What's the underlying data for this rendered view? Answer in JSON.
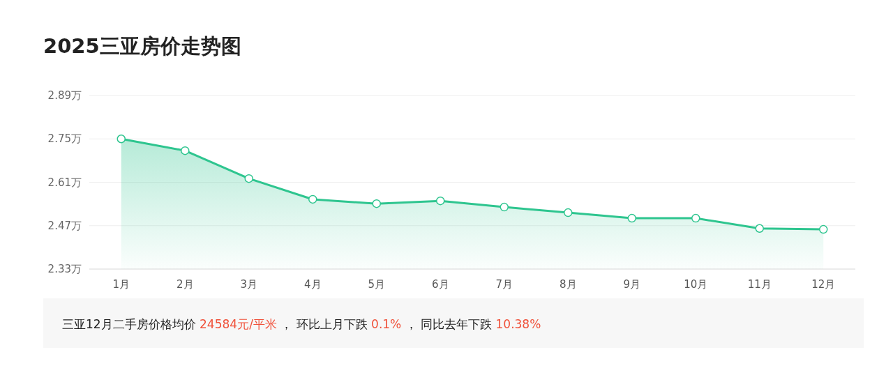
{
  "chart_data": {
    "type": "area",
    "title": "2025三亚房价走势图",
    "categories": [
      "1月",
      "2月",
      "3月",
      "4月",
      "5月",
      "6月",
      "7月",
      "8月",
      "9月",
      "10月",
      "11月",
      "12月"
    ],
    "series": [
      {
        "color": "#2ec58f",
        "values": [
          2.75,
          2.712,
          2.622,
          2.555,
          2.541,
          2.55,
          2.53,
          2.512,
          2.494,
          2.494,
          2.461,
          2.458
        ]
      }
    ],
    "ylim": [
      2.33,
      2.89
    ],
    "yticks": [
      {
        "value": 2.33,
        "label": "2.33万"
      },
      {
        "value": 2.47,
        "label": "2.47万"
      },
      {
        "value": 2.61,
        "label": "2.61万"
      },
      {
        "value": 2.75,
        "label": "2.75万"
      },
      {
        "value": 2.89,
        "label": "2.89万"
      }
    ],
    "grid": "y",
    "marker": "circle",
    "annotations": [
      "三亚12月二手房价格均价 ",
      "24584元/平米",
      " ， 环比上月下跌 ",
      "0.1%",
      " ， 同比去年下跌 ",
      "10.38%"
    ]
  }
}
